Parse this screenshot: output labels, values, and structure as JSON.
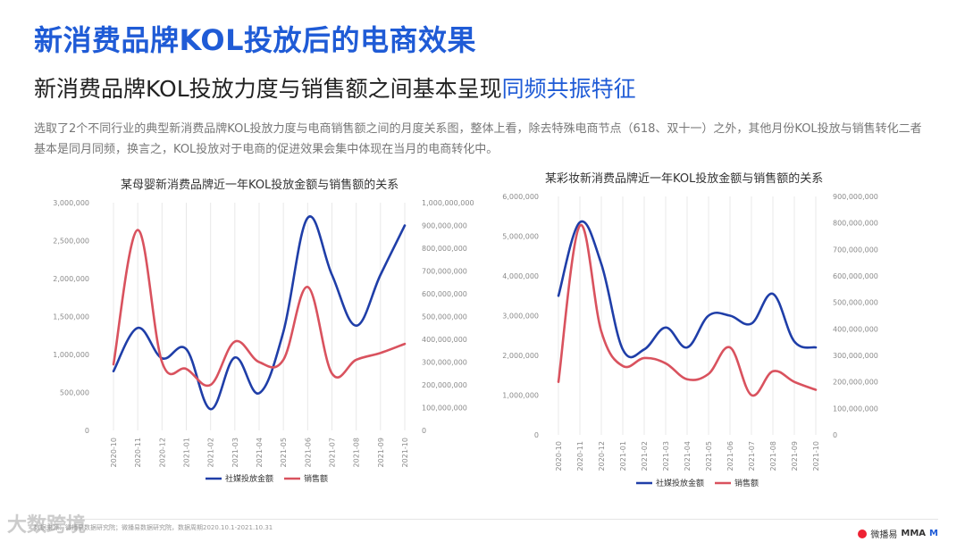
{
  "page": {
    "title": "新消费品牌KOL投放后的电商效果",
    "subtitle_main": "新消费品牌KOL投放力度与销售额之间基本呈现",
    "subtitle_highlight": "同频共振特征",
    "description": "选取了2个不同行业的典型新消费品牌KOL投放力度与电商销售额之间的月度关系图，整体上看，除去特殊电商节点（618、双十一）之外，其他月份KOL投放与销售转化二者基本是同月同频，换言之，KOL投放对于电商的促进效果会集中体现在当月的电商转化中。",
    "footer_text": "数据来源：微播易数据研究院；微播易数据研究院，数据周期2020.10.1-2021.10.31",
    "brand_left": "大数跨境",
    "brand_right_1": "微播易",
    "brand_right_2": "MMA",
    "brand_right_3": "M"
  },
  "colors": {
    "kol": "#1f3ea8",
    "sales": "#d9525e",
    "title": "#1f5bd6"
  },
  "chart_data": [
    {
      "type": "line",
      "title": "某母婴新消费品牌近一年KOL投放金额与销售额的关系",
      "x": [
        "2020-10",
        "2020-11",
        "2020-12",
        "2021-01",
        "2021-02",
        "2021-03",
        "2021-04",
        "2021-05",
        "2021-06",
        "2021-07",
        "2021-08",
        "2021-09",
        "2021-10"
      ],
      "y_left": {
        "ticks": [
          "3,000,000",
          "2,500,000",
          "2,000,000",
          "1,500,000",
          "1,000,000",
          "500,000",
          "0"
        ],
        "range": [
          0,
          3000000
        ]
      },
      "y_right": {
        "ticks": [
          "1,000,000,000",
          "900,000,000",
          "800,000,000",
          "700,000,000",
          "600,000,000",
          "500,000,000",
          "400,000,000",
          "300,000,000",
          "200,000,000",
          "100,000,000",
          "0"
        ],
        "range": [
          0,
          1000000000
        ]
      },
      "series": [
        {
          "name": "社媒投放金额",
          "axis": "left",
          "values": [
            780000,
            1350000,
            950000,
            1070000,
            280000,
            960000,
            490000,
            1300000,
            2800000,
            2050000,
            1380000,
            2050000,
            2700000
          ]
        },
        {
          "name": "销售额",
          "axis": "right",
          "values": [
            290000000,
            880000000,
            300000000,
            270000000,
            200000000,
            390000000,
            300000000,
            310000000,
            630000000,
            250000000,
            310000000,
            340000000,
            380000000
          ]
        }
      ]
    },
    {
      "type": "line",
      "title": "某彩妆新消费品牌近一年KOL投放金额与销售额的关系",
      "x": [
        "2020-10",
        "2020-11",
        "2020-12",
        "2021-01",
        "2021-02",
        "2021-03",
        "2021-04",
        "2021-05",
        "2021-06",
        "2021-07",
        "2021-08",
        "2021-09",
        "2021-10"
      ],
      "y_left": {
        "ticks": [
          "6,000,000",
          "5,000,000",
          "4,000,000",
          "3,000,000",
          "2,000,000",
          "1,000,000",
          "0"
        ],
        "range": [
          0,
          6000000
        ]
      },
      "y_right": {
        "ticks": [
          "900,000,000",
          "800,000,000",
          "700,000,000",
          "600,000,000",
          "500,000,000",
          "400,000,000",
          "300,000,000",
          "200,000,000",
          "100,000,000",
          "0"
        ],
        "range": [
          0,
          900000000
        ]
      },
      "series": [
        {
          "name": "社媒投放金额",
          "axis": "left",
          "values": [
            3500000,
            5350000,
            4300000,
            2150000,
            2150000,
            2700000,
            2200000,
            3000000,
            3000000,
            2800000,
            3550000,
            2350000,
            2200000
          ]
        },
        {
          "name": "销售额",
          "axis": "right",
          "values": [
            200000000,
            790000000,
            390000000,
            260000000,
            290000000,
            270000000,
            210000000,
            230000000,
            330000000,
            150000000,
            240000000,
            200000000,
            170000000
          ]
        }
      ]
    }
  ]
}
